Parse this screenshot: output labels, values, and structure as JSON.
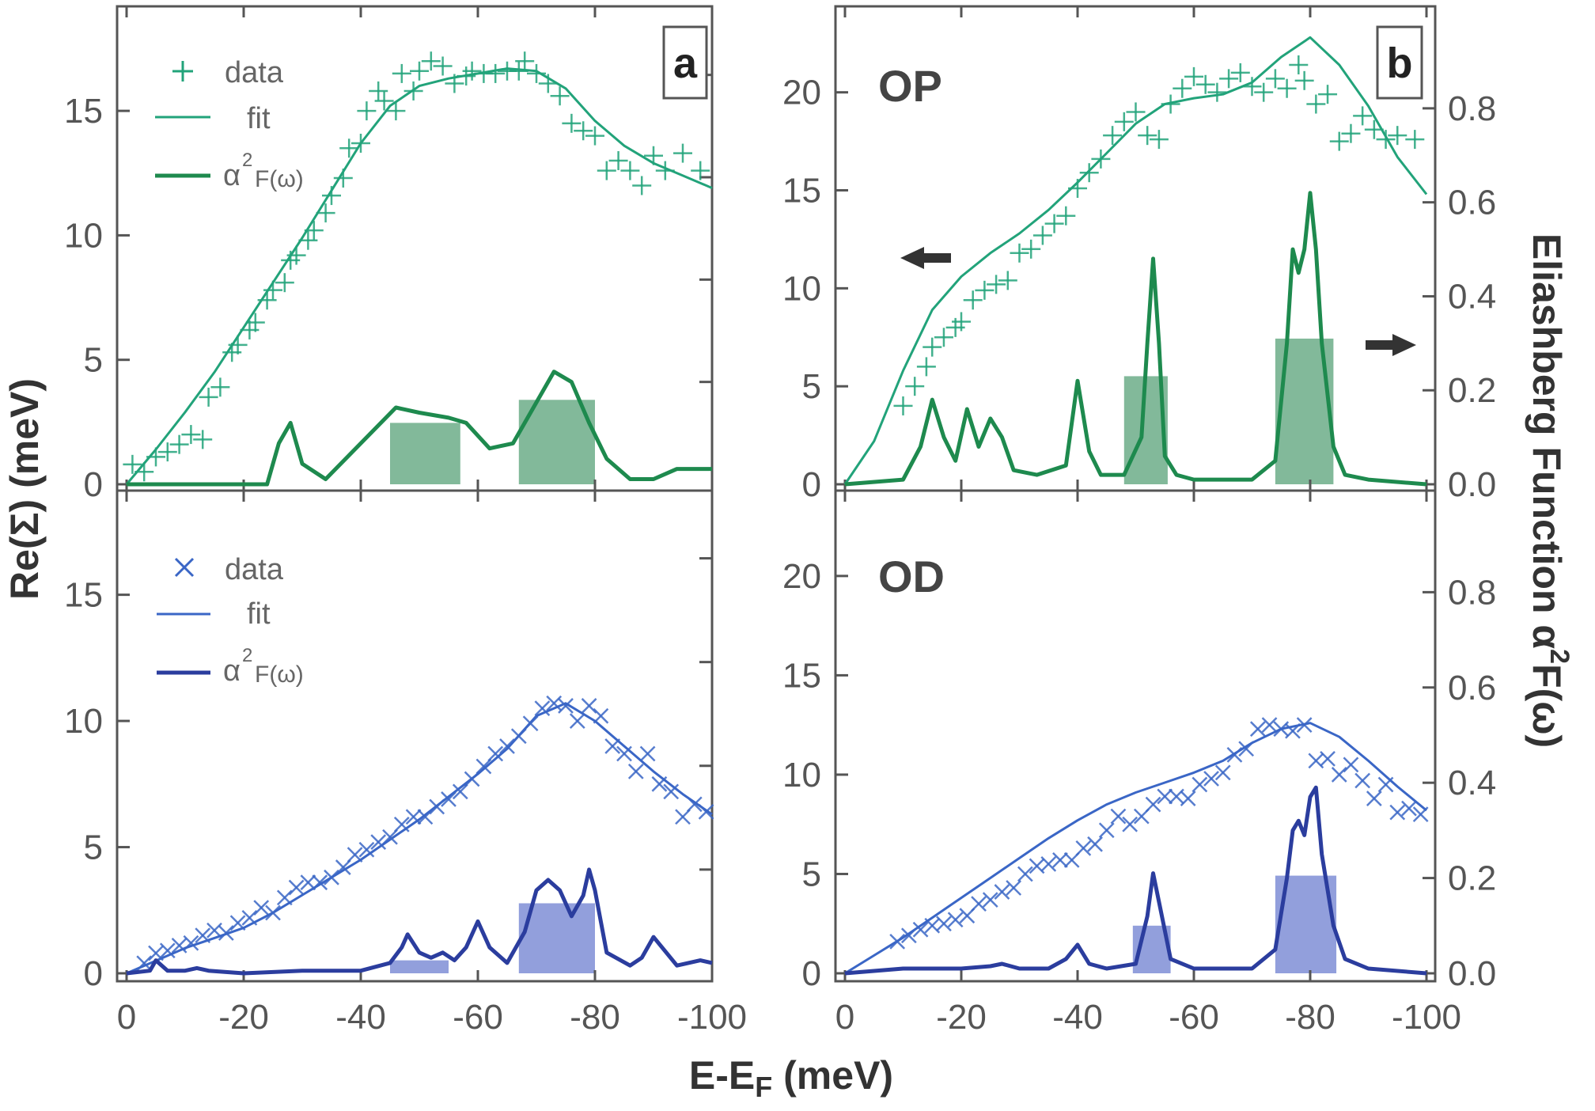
{
  "figure": {
    "x_axis_title_main": "E-E",
    "x_axis_title_sub": "F",
    "x_axis_title_unit": " (meV)",
    "y_left_title": "Re(Σ) (meV)",
    "y_right_title_main": "Eliashberg Function α",
    "y_right_title_sup": "2",
    "y_right_title_tail": "F(ω)",
    "colors": {
      "green": "#22a37a",
      "green_dark": "#1e8a4e",
      "green_bar": "#2e8b57",
      "blue": "#3a66c6",
      "blue_dark": "#2b3d9e",
      "blue_bar": "#4a5fc4",
      "frame": "#555555"
    }
  },
  "legends": {
    "top": {
      "data": "data",
      "fit": "fit",
      "a2f_main": "α",
      "a2f_sup": "2",
      "a2f_tail": "F(ω)"
    },
    "bottom": {
      "data": "data",
      "fit": "fit",
      "a2f_main": "α",
      "a2f_sup": "2",
      "a2f_tail": "F(ω)"
    }
  },
  "arrows": {
    "left": "left-arrow-icon",
    "right": "right-arrow-icon"
  },
  "chart_data": [
    {
      "panel": "a",
      "label": "a",
      "sample": "",
      "type": "scatter",
      "x_ticks": [
        "0",
        "-20",
        "-40",
        "-60",
        "-80",
        "-100"
      ],
      "y_ticks": [
        "0",
        "5",
        "10",
        "15"
      ],
      "xlim": [
        0,
        -100
      ],
      "ylim": [
        0,
        18.5
      ],
      "y2lim": [
        0,
        0.9
      ],
      "data_marker": "plus",
      "series": [
        {
          "name": "data",
          "kind": "points",
          "x": [
            -1,
            -3,
            -5,
            -7,
            -9,
            -11,
            -13,
            -14,
            -16,
            -18,
            -19,
            -21,
            -22,
            -24,
            -25,
            -27,
            -28,
            -29,
            -31,
            -32,
            -34,
            -35,
            -37,
            -38,
            -40,
            -41,
            -43,
            -44,
            -46,
            -47,
            -49,
            -50,
            -52,
            -54,
            -56,
            -58,
            -59,
            -61,
            -63,
            -65,
            -67,
            -68,
            -70,
            -72,
            -74,
            -76,
            -78,
            -80,
            -82,
            -84,
            -86,
            -88,
            -90,
            -92,
            -95,
            -98
          ],
          "y": [
            0.8,
            0.5,
            1.1,
            1.3,
            1.6,
            2.0,
            1.8,
            3.5,
            3.9,
            5.3,
            5.6,
            6.2,
            6.5,
            7.4,
            7.8,
            8.1,
            9.0,
            9.2,
            9.8,
            10.2,
            10.9,
            11.6,
            12.3,
            13.5,
            13.7,
            15.0,
            15.8,
            15.4,
            15.0,
            16.5,
            15.8,
            16.6,
            17.0,
            16.8,
            16.1,
            16.4,
            16.6,
            16.5,
            16.5,
            16.6,
            16.6,
            17.0,
            16.5,
            16.1,
            15.6,
            14.5,
            14.2,
            14.0,
            12.6,
            13.0,
            12.6,
            12.0,
            13.2,
            12.6,
            13.3,
            12.6
          ]
        },
        {
          "name": "fit",
          "kind": "line",
          "x": [
            0,
            -5,
            -10,
            -15,
            -20,
            -25,
            -30,
            -35,
            -40,
            -45,
            -50,
            -55,
            -60,
            -65,
            -70,
            -75,
            -80,
            -85,
            -90,
            -95,
            -100
          ],
          "y": [
            0,
            1.4,
            2.9,
            4.5,
            6.3,
            8.1,
            9.9,
            11.8,
            13.7,
            15.2,
            16.0,
            16.3,
            16.5,
            16.7,
            16.6,
            15.9,
            14.6,
            13.6,
            12.9,
            12.4,
            11.9
          ]
        },
        {
          "name": "α²F(ω)",
          "kind": "line",
          "axis": "right",
          "x": [
            0,
            -24,
            -26,
            -28,
            -30,
            -34,
            -40,
            -46,
            -50,
            -55,
            -58,
            -62,
            -66,
            -70,
            -73,
            -76,
            -79,
            -82,
            -86,
            -90,
            -94,
            -100
          ],
          "y": [
            0,
            0,
            0.08,
            0.12,
            0.04,
            0.01,
            0.08,
            0.15,
            0.14,
            0.13,
            0.12,
            0.07,
            0.08,
            0.16,
            0.22,
            0.2,
            0.12,
            0.05,
            0.01,
            0.01,
            0.03,
            0.03
          ]
        }
      ],
      "bars": [
        {
          "x0": -45,
          "x1": -57,
          "value": 0.12
        },
        {
          "x0": -67,
          "x1": -80,
          "value": 0.165
        }
      ]
    },
    {
      "panel": "b",
      "label": "b",
      "sample": "OP",
      "type": "scatter",
      "x_ticks": [
        "0",
        "-20",
        "-40",
        "-60",
        "-80",
        "-100"
      ],
      "y_ticks": [
        "0",
        "5",
        "10",
        "15",
        "20"
      ],
      "y2_ticks": [
        "0.0",
        "0.2",
        "0.4",
        "0.6",
        "0.8"
      ],
      "xlim": [
        0,
        -100
      ],
      "ylim": [
        0,
        23.5
      ],
      "y2lim": [
        0,
        0.98
      ],
      "data_marker": "plus",
      "series": [
        {
          "name": "data",
          "kind": "points",
          "x": [
            -10,
            -12,
            -14,
            -15,
            -17,
            -19,
            -20,
            -22,
            -24,
            -26,
            -28,
            -30,
            -32,
            -34,
            -36,
            -38,
            -40,
            -42,
            -44,
            -46,
            -48,
            -50,
            -52,
            -54,
            -56,
            -58,
            -60,
            -62,
            -64,
            -66,
            -68,
            -70,
            -72,
            -74,
            -76,
            -78,
            -79,
            -81,
            -83,
            -85,
            -87,
            -89,
            -91,
            -93,
            -95,
            -98
          ],
          "y": [
            4.0,
            5.0,
            6.0,
            7.0,
            7.5,
            8.0,
            8.3,
            9.4,
            9.9,
            10.2,
            10.4,
            11.8,
            12.0,
            12.7,
            13.3,
            13.7,
            15.1,
            15.9,
            16.6,
            17.8,
            18.5,
            19.0,
            17.8,
            17.6,
            19.4,
            20.2,
            20.8,
            20.4,
            20.0,
            20.7,
            21.0,
            20.3,
            20.0,
            20.7,
            20.2,
            21.4,
            20.6,
            19.4,
            19.9,
            17.5,
            17.9,
            18.8,
            18.1,
            17.6,
            17.8,
            17.6
          ]
        },
        {
          "name": "fit",
          "kind": "line",
          "x": [
            0,
            -5,
            -10,
            -15,
            -20,
            -25,
            -30,
            -35,
            -40,
            -45,
            -50,
            -55,
            -60,
            -65,
            -70,
            -75,
            -80,
            -85,
            -90,
            -95,
            -100
          ],
          "y": [
            0,
            2.2,
            5.8,
            8.9,
            10.6,
            11.8,
            12.8,
            14.0,
            15.4,
            16.9,
            18.4,
            19.4,
            19.7,
            19.9,
            20.5,
            21.8,
            22.8,
            21.4,
            19.3,
            16.7,
            14.8
          ]
        },
        {
          "name": "α²F(ω)",
          "kind": "line",
          "axis": "right",
          "x": [
            0,
            -10,
            -13,
            -15,
            -17,
            -19,
            -21,
            -23,
            -25,
            -27,
            -29,
            -33,
            -38,
            -40,
            -42,
            -44,
            -48,
            -51,
            -52,
            -53,
            -54,
            -55,
            -57,
            -60,
            -70,
            -74,
            -76,
            -77,
            -78,
            -79,
            -80,
            -81,
            -82,
            -84,
            -86,
            -90,
            -100
          ],
          "y": [
            0,
            0.01,
            0.08,
            0.18,
            0.1,
            0.05,
            0.16,
            0.08,
            0.14,
            0.1,
            0.03,
            0.02,
            0.04,
            0.22,
            0.07,
            0.02,
            0.02,
            0.1,
            0.3,
            0.48,
            0.3,
            0.06,
            0.02,
            0.01,
            0.01,
            0.05,
            0.3,
            0.5,
            0.45,
            0.5,
            0.62,
            0.5,
            0.3,
            0.08,
            0.02,
            0.01,
            0.0
          ]
        }
      ],
      "bars": [
        {
          "x0": -48,
          "x1": -55.5,
          "value": 0.23
        },
        {
          "x0": -74,
          "x1": -84,
          "value": 0.31
        }
      ]
    },
    {
      "panel": "c",
      "label": "",
      "sample": "",
      "type": "scatter",
      "x_ticks": [
        "0",
        "-20",
        "-40",
        "-60",
        "-80",
        "-100"
      ],
      "y_ticks": [
        "0",
        "5",
        "10",
        "15"
      ],
      "xlim": [
        0,
        -100
      ],
      "ylim": [
        0,
        18.5
      ],
      "y2lim": [
        0,
        0.9
      ],
      "data_marker": "cross",
      "series": [
        {
          "name": "data",
          "kind": "points",
          "x": [
            -3,
            -5,
            -7,
            -9,
            -11,
            -13,
            -15,
            -17,
            -19,
            -21,
            -23,
            -25,
            -27,
            -29,
            -31,
            -33,
            -35,
            -37,
            -39,
            -41,
            -43,
            -45,
            -47,
            -49,
            -51,
            -53,
            -55,
            -57,
            -59,
            -61,
            -63,
            -65,
            -67,
            -69,
            -71,
            -73,
            -75,
            -77,
            -79,
            -81,
            -83,
            -85,
            -87,
            -89,
            -91,
            -93,
            -95,
            -97,
            -99
          ],
          "y": [
            0.4,
            0.8,
            0.9,
            1.1,
            1.2,
            1.5,
            1.7,
            1.6,
            2.0,
            2.2,
            2.6,
            2.4,
            3.0,
            3.4,
            3.6,
            3.6,
            3.8,
            4.2,
            4.7,
            4.9,
            5.2,
            5.4,
            5.9,
            6.2,
            6.2,
            6.6,
            6.9,
            7.2,
            7.7,
            8.2,
            8.7,
            9.0,
            9.4,
            9.9,
            10.5,
            10.7,
            10.6,
            10.0,
            10.6,
            10.2,
            9.0,
            8.7,
            8.0,
            8.7,
            7.5,
            7.2,
            6.2,
            6.7,
            6.4
          ]
        },
        {
          "name": "fit",
          "kind": "line",
          "x": [
            0,
            -5,
            -10,
            -15,
            -20,
            -25,
            -30,
            -35,
            -40,
            -45,
            -50,
            -55,
            -60,
            -65,
            -70,
            -75,
            -80,
            -85,
            -90,
            -95,
            -100
          ],
          "y": [
            0,
            0.5,
            1.0,
            1.4,
            1.8,
            2.4,
            3.1,
            3.8,
            4.5,
            5.3,
            6.1,
            7.0,
            7.9,
            8.9,
            10.2,
            10.7,
            10.0,
            9.0,
            8.0,
            7.1,
            6.3
          ]
        },
        {
          "name": "α²F(ω)",
          "kind": "line",
          "axis": "right",
          "x": [
            0,
            -4,
            -5,
            -7,
            -10,
            -12,
            -14,
            -20,
            -30,
            -40,
            -45,
            -47,
            -48,
            -50,
            -52,
            -54,
            -56,
            -58,
            -60,
            -62,
            -65,
            -68,
            -70,
            -72,
            -74,
            -76,
            -78,
            -79,
            -80,
            -82,
            -86,
            -88,
            -90,
            -94,
            -98,
            -100
          ],
          "y": [
            0,
            0.005,
            0.025,
            0.005,
            0.005,
            0.01,
            0.005,
            0.0,
            0.005,
            0.005,
            0.02,
            0.05,
            0.075,
            0.04,
            0.03,
            0.04,
            0.025,
            0.05,
            0.1,
            0.05,
            0.02,
            0.08,
            0.16,
            0.18,
            0.16,
            0.11,
            0.15,
            0.2,
            0.16,
            0.04,
            0.015,
            0.03,
            0.07,
            0.015,
            0.025,
            0.02
          ]
        }
      ],
      "bars": [
        {
          "x0": -45,
          "x1": -55,
          "value": 0.025
        },
        {
          "x0": -67,
          "x1": -80,
          "value": 0.135
        }
      ]
    },
    {
      "panel": "d",
      "label": "",
      "sample": "OD",
      "type": "scatter",
      "x_ticks": [
        "0",
        "-20",
        "-40",
        "-60",
        "-80",
        "-100"
      ],
      "y_ticks": [
        "0",
        "5",
        "10",
        "15",
        "20"
      ],
      "y2_ticks": [
        "0.0",
        "0.2",
        "0.4",
        "0.6",
        "0.8"
      ],
      "xlim": [
        0,
        -100
      ],
      "ylim": [
        0,
        23.5
      ],
      "y2lim": [
        0,
        0.98
      ],
      "data_marker": "cross",
      "series": [
        {
          "name": "data",
          "kind": "points",
          "x": [
            -9,
            -11,
            -13,
            -15,
            -17,
            -19,
            -21,
            -23,
            -25,
            -27,
            -29,
            -31,
            -33,
            -35,
            -37,
            -39,
            -41,
            -43,
            -45,
            -47,
            -49,
            -51,
            -53,
            -55,
            -57,
            -59,
            -61,
            -63,
            -65,
            -67,
            -69,
            -71,
            -73,
            -75,
            -77,
            -79,
            -81,
            -83,
            -85,
            -87,
            -89,
            -91,
            -93,
            -95,
            -97,
            -99
          ],
          "y": [
            1.6,
            1.9,
            2.2,
            2.4,
            2.5,
            2.7,
            2.9,
            3.5,
            3.7,
            4.1,
            4.3,
            5.0,
            5.4,
            5.5,
            5.7,
            5.7,
            6.3,
            6.5,
            7.2,
            7.9,
            7.5,
            7.9,
            8.5,
            8.9,
            8.9,
            8.8,
            9.5,
            9.8,
            10.1,
            11.0,
            11.3,
            12.3,
            12.5,
            12.3,
            12.2,
            12.5,
            10.7,
            10.8,
            10.0,
            10.5,
            9.7,
            8.8,
            9.5,
            8.1,
            8.3,
            8.0
          ]
        },
        {
          "name": "fit",
          "kind": "line",
          "x": [
            0,
            -5,
            -10,
            -15,
            -20,
            -25,
            -30,
            -35,
            -40,
            -45,
            -50,
            -55,
            -60,
            -65,
            -70,
            -75,
            -80,
            -85,
            -90,
            -95,
            -100
          ],
          "y": [
            0,
            0.9,
            1.8,
            2.8,
            3.8,
            4.8,
            5.8,
            6.8,
            7.7,
            8.5,
            9.1,
            9.6,
            10.1,
            10.7,
            11.6,
            12.3,
            12.6,
            11.9,
            10.7,
            9.4,
            8.2
          ]
        },
        {
          "name": "α²F(ω)",
          "kind": "line",
          "axis": "right",
          "x": [
            0,
            -10,
            -20,
            -25,
            -27,
            -30,
            -35,
            -38,
            -40,
            -42,
            -45,
            -50,
            -52,
            -53,
            -54,
            -56,
            -60,
            -70,
            -74,
            -76,
            -77,
            -78,
            -79,
            -80,
            -81,
            -82,
            -84,
            -86,
            -90,
            -100
          ],
          "y": [
            0,
            0.01,
            0.01,
            0.015,
            0.02,
            0.01,
            0.01,
            0.03,
            0.06,
            0.02,
            0.01,
            0.02,
            0.12,
            0.21,
            0.15,
            0.03,
            0.01,
            0.01,
            0.05,
            0.2,
            0.3,
            0.32,
            0.29,
            0.37,
            0.39,
            0.25,
            0.1,
            0.03,
            0.01,
            0.0
          ]
        }
      ],
      "bars": [
        {
          "x0": -49.5,
          "x1": -56,
          "value": 0.1
        },
        {
          "x0": -74,
          "x1": -84.5,
          "value": 0.205
        }
      ]
    }
  ]
}
